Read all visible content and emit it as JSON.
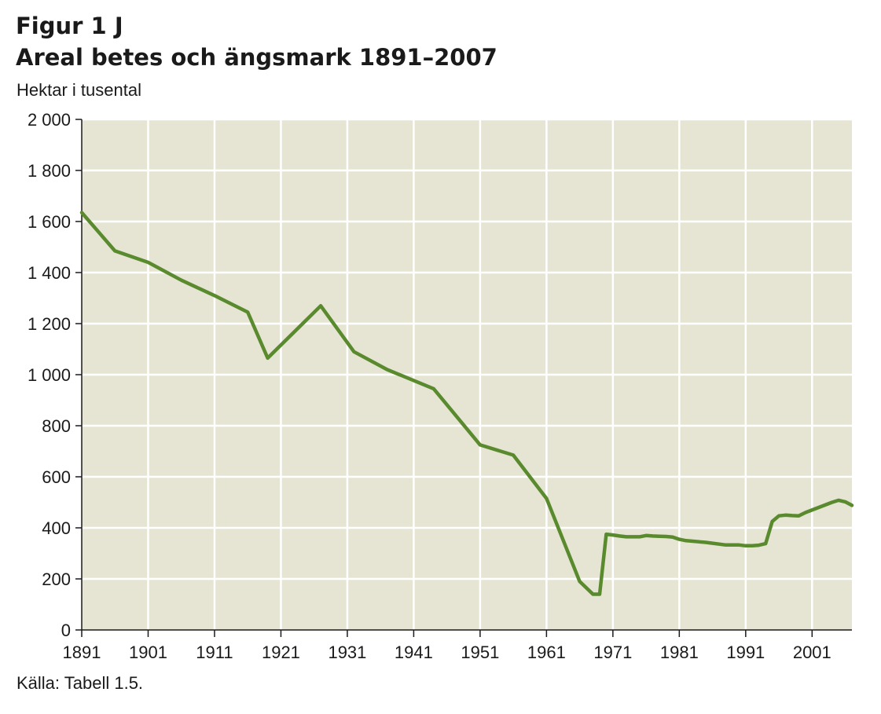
{
  "header": {
    "figure_label": "Figur 1 J",
    "title": "Areal betes och ängsmark 1891–2007",
    "unit_label": "Hektar i tusental"
  },
  "footer": {
    "source": "Källa: Tabell 1.5."
  },
  "colors": {
    "plot_background": "#e6e5d4",
    "gridline": "#ffffff",
    "series_line": "#5a8a2e",
    "axis": "#1a1a1a"
  },
  "chart_data": {
    "type": "line",
    "title": "Areal betes och ängsmark 1891–2007",
    "ylabel": "Hektar i tusental",
    "xlabel": "",
    "xlim": [
      1891,
      2007
    ],
    "ylim": [
      0,
      2000
    ],
    "grid": true,
    "x_ticks": [
      1891,
      1901,
      1911,
      1921,
      1931,
      1941,
      1951,
      1961,
      1971,
      1981,
      1991,
      2001
    ],
    "x_tick_labels": [
      "1891",
      "1901",
      "1911",
      "1921",
      "1931",
      "1941",
      "1951",
      "1961",
      "1971",
      "1981",
      "1991",
      "2001"
    ],
    "y_ticks": [
      0,
      200,
      400,
      600,
      800,
      1000,
      1200,
      1400,
      1600,
      1800,
      2000
    ],
    "y_tick_labels": [
      "0",
      "200",
      "400",
      "600",
      "800",
      "1 000",
      "1 200",
      "1 400",
      "1 600",
      "1 800",
      "2 000"
    ],
    "series": [
      {
        "x": [
          1891,
          1896,
          1901,
          1906,
          1911,
          1916,
          1919,
          1927,
          1932,
          1937,
          1944,
          1951,
          1956,
          1961,
          1966,
          1968,
          1969,
          1970,
          1971,
          1972,
          1973,
          1974,
          1975,
          1976,
          1977,
          1978,
          1979,
          1980,
          1981,
          1982,
          1985,
          1988,
          1990,
          1991,
          1992,
          1993,
          1994,
          1995,
          1996,
          1997,
          1998,
          1999,
          2000,
          2002,
          2004,
          2005,
          2006,
          2007
        ],
        "y": [
          1635,
          1485,
          1440,
          1370,
          1310,
          1245,
          1065,
          1270,
          1090,
          1020,
          945,
          725,
          685,
          515,
          190,
          140,
          140,
          375,
          372,
          368,
          365,
          365,
          365,
          370,
          368,
          367,
          366,
          364,
          355,
          350,
          343,
          333,
          333,
          330,
          330,
          332,
          338,
          425,
          447,
          450,
          448,
          447,
          460,
          480,
          500,
          508,
          502,
          488
        ]
      }
    ]
  }
}
